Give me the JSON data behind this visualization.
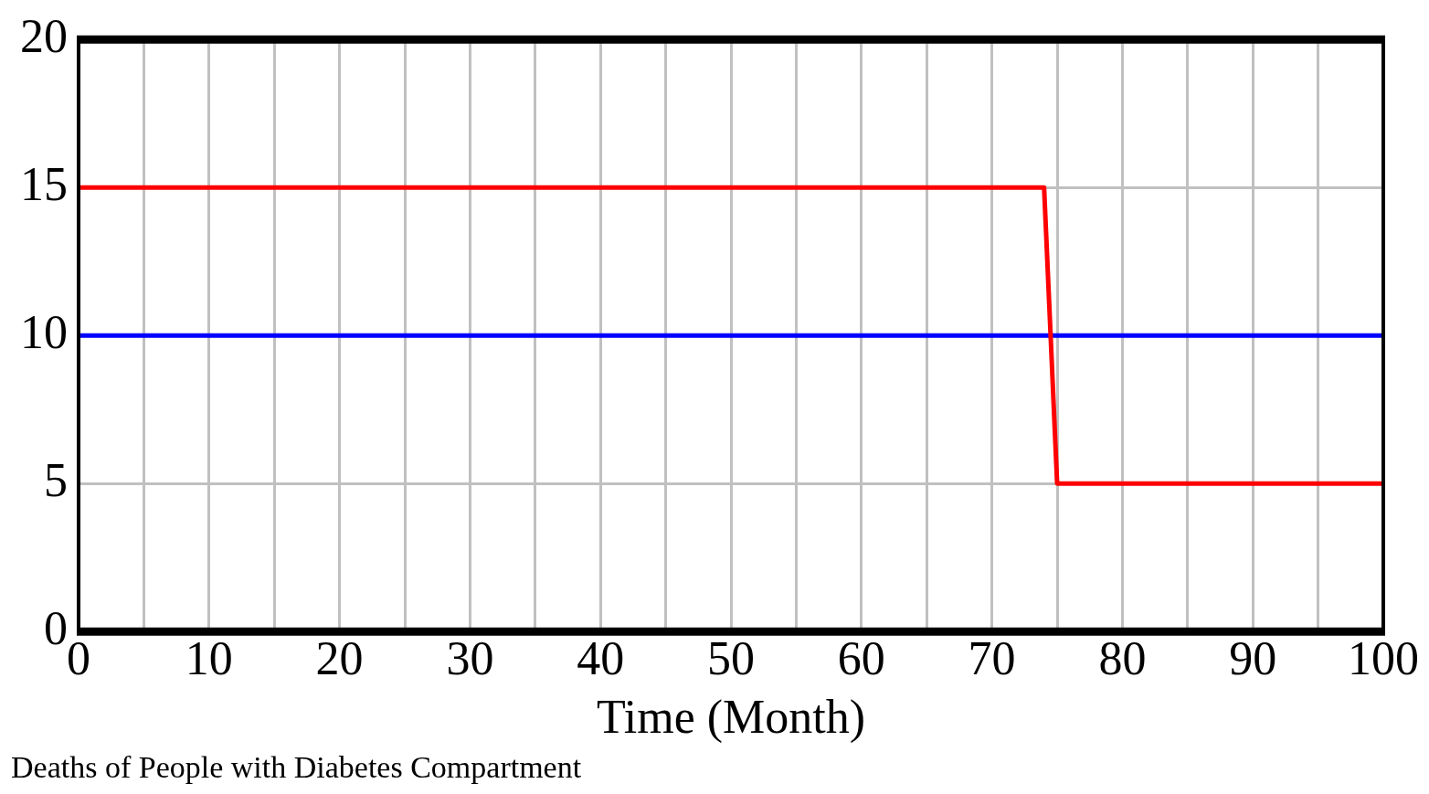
{
  "chart_data": {
    "type": "line",
    "xlabel": "Time (Month)",
    "annotations": [
      "Deaths of People with Diabetes Compartment"
    ],
    "series": [
      {
        "color": "#ff0000",
        "x": [
          0,
          74,
          75,
          100
        ],
        "values": [
          15,
          15,
          5,
          5
        ]
      },
      {
        "color": "#0000ff",
        "x": [
          0,
          100
        ],
        "values": [
          10,
          10
        ]
      }
    ],
    "xlim": [
      0,
      100
    ],
    "xticks": [
      0,
      {
        "value": 5,
        "label": null
      },
      10,
      {
        "value": 15,
        "label": null
      },
      20,
      {
        "value": 25,
        "label": null
      },
      30,
      {
        "value": 35,
        "label": null
      },
      40,
      {
        "value": 45,
        "label": null
      },
      50,
      {
        "value": 55,
        "label": null
      },
      60,
      {
        "value": 65,
        "label": null
      },
      70,
      {
        "value": 75,
        "label": null
      },
      80,
      {
        "value": 85,
        "label": null
      },
      90,
      {
        "value": 95,
        "label": null
      },
      100
    ],
    "ylim": [
      0,
      20
    ],
    "yticks": [
      0,
      5,
      10,
      15,
      20
    ],
    "grid": true,
    "legend": false,
    "marker": "none",
    "line_style": "solid"
  }
}
